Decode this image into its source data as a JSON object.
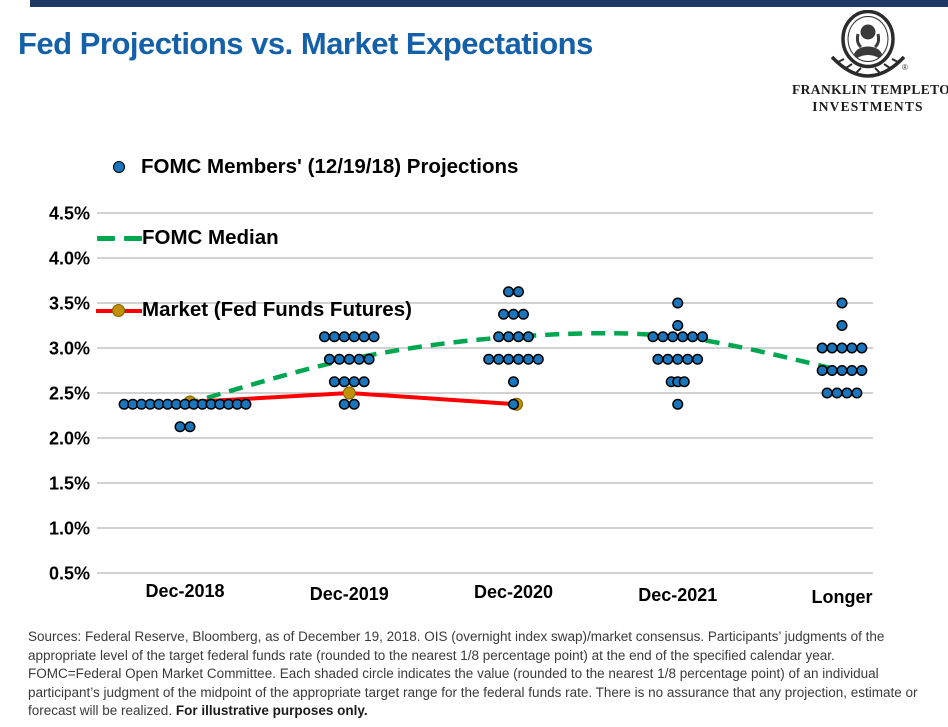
{
  "page": {
    "title": "Fed Projections vs. Market Expectations"
  },
  "logo": {
    "line1": "FRANKLIN TEMPLETON",
    "line2": "INVESTMENTS",
    "registered_mark": "®"
  },
  "legend": {
    "items": [
      {
        "label": "FOMC Members' (12/19/18) Projections",
        "marker": "blue-dot"
      },
      {
        "label": "FOMC Median",
        "marker": "green-dash"
      },
      {
        "label": "Market (Fed Funds Futures)",
        "marker": "red-line-gold-dot"
      }
    ]
  },
  "colors": {
    "navy_bar": "#1F3864",
    "title_blue": "#1460A9",
    "blue": "#1B75BC",
    "dot_outline": "#000000",
    "green": "#00A650",
    "red": "#FE0000",
    "gold": "#BF9000",
    "gold_dark": "#7F6000",
    "gridline": "#A6A6A6"
  },
  "chart_data": {
    "type": "scatter",
    "title": "Fed Projections vs. Market Expectations",
    "categories": [
      "Dec-2018",
      "Dec-2019",
      "Dec-2020",
      "Dec-2021",
      "Longer"
    ],
    "ylim": [
      0.5,
      4.5
    ],
    "ytick_step": 0.5,
    "grid": "horizontal",
    "legend_position": "overlay-top-left",
    "y_ticks": [
      {
        "label": "4.5%",
        "value": 4.5
      },
      {
        "label": "4.0%",
        "value": 4.0
      },
      {
        "label": "3.5%",
        "value": 3.5
      },
      {
        "label": "3.0%",
        "value": 3.0
      },
      {
        "label": "2.5%",
        "value": 2.5
      },
      {
        "label": "2.0%",
        "value": 2.0
      },
      {
        "label": "1.5%",
        "value": 1.5
      },
      {
        "label": "1.0%",
        "value": 1.0
      },
      {
        "label": "0.5%",
        "value": 0.5
      }
    ],
    "series": [
      {
        "name": "FOMC Members' (12/19/18) Projections",
        "type": "dot-plot",
        "color_key": "blue",
        "points": [
          {
            "category": "Dec-2018",
            "value": 2.375,
            "count": 15,
            "spacing": 8.7
          },
          {
            "category": "Dec-2018",
            "value": 2.125,
            "count": 2
          },
          {
            "category": "Dec-2019",
            "value": 3.125,
            "count": 6
          },
          {
            "category": "Dec-2019",
            "value": 2.875,
            "count": 5
          },
          {
            "category": "Dec-2019",
            "value": 2.625,
            "count": 4
          },
          {
            "category": "Dec-2019",
            "value": 2.375,
            "count": 2
          },
          {
            "category": "Dec-2020",
            "value": 3.625,
            "count": 2
          },
          {
            "category": "Dec-2020",
            "value": 3.375,
            "count": 3
          },
          {
            "category": "Dec-2020",
            "value": 3.125,
            "count": 4
          },
          {
            "category": "Dec-2020",
            "value": 2.875,
            "count": 6
          },
          {
            "category": "Dec-2020",
            "value": 2.625,
            "count": 1
          },
          {
            "category": "Dec-2020",
            "value": 2.375,
            "count": 1
          },
          {
            "category": "Dec-2021",
            "value": 3.5,
            "count": 1
          },
          {
            "category": "Dec-2021",
            "value": 3.25,
            "count": 1
          },
          {
            "category": "Dec-2021",
            "value": 3.125,
            "count": 6
          },
          {
            "category": "Dec-2021",
            "value": 2.875,
            "count": 5
          },
          {
            "category": "Dec-2021",
            "value": 2.625,
            "count": 3,
            "spacing": 6.5
          },
          {
            "category": "Dec-2021",
            "value": 2.375,
            "count": 1
          },
          {
            "category": "Longer",
            "value": 3.5,
            "count": 1
          },
          {
            "category": "Longer",
            "value": 3.25,
            "count": 1
          },
          {
            "category": "Longer",
            "value": 3.0,
            "count": 5
          },
          {
            "category": "Longer",
            "value": 2.75,
            "count": 5
          },
          {
            "category": "Longer",
            "value": 2.5,
            "count": 4
          }
        ]
      },
      {
        "name": "FOMC Median",
        "type": "line",
        "style": "dashed",
        "color_key": "green",
        "values": [
          2.375,
          2.875,
          3.125,
          3.125,
          2.75
        ]
      },
      {
        "name": "Market (Fed Funds Futures)",
        "type": "line",
        "style": "solid",
        "color_key": "red",
        "marker_color_key": "gold",
        "categories_covered": [
          "Dec-2018",
          "Dec-2019",
          "Dec-2020"
        ],
        "values": [
          2.4,
          2.5,
          2.375
        ],
        "dx": [
          5,
          0,
          3
        ]
      }
    ]
  },
  "footnote": {
    "lines": [
      "Sources: Federal Reserve, Bloomberg, as of December 19, 2018. OIS (overnight index swap)/market consensus. Participants’ judgments of the",
      "appropriate level of the target federal funds rate (rounded to the nearest 1/8 percentage point) at the end of the specified calendar year.",
      "FOMC=Federal Open Market Committee. Each shaded circle indicates the value (rounded to the nearest 1/8 percentage point) of an individual",
      "participant’s judgment of the midpoint of the appropriate target range for the federal funds rate. There is no assurance that any projection, estimate or",
      "forecast will be realized. "
    ],
    "bold_suffix": "For illustrative purposes only."
  }
}
